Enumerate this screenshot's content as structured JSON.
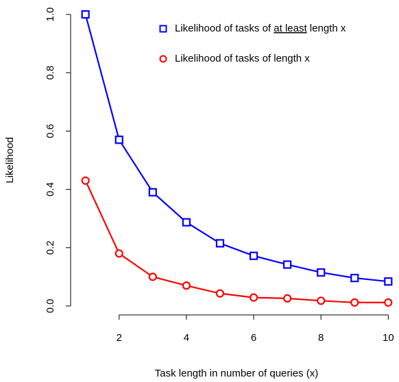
{
  "chart_data": {
    "type": "line",
    "xlabel": "Task length in number of queries (x)",
    "ylabel": "Likelihood",
    "x": [
      1,
      2,
      3,
      4,
      5,
      6,
      7,
      8,
      9,
      10
    ],
    "series": [
      {
        "name": "Likelihood of tasks of at least length x",
        "underline": "at least",
        "color": "#0000ff",
        "marker": "square",
        "values": [
          1.0,
          0.57,
          0.39,
          0.287,
          0.215,
          0.172,
          0.142,
          0.115,
          0.096,
          0.084
        ]
      },
      {
        "name": "Likelihood of tasks of length x",
        "color": "#ff0000",
        "marker": "circle",
        "values": [
          0.43,
          0.18,
          0.1,
          0.07,
          0.043,
          0.029,
          0.026,
          0.018,
          0.012,
          0.012
        ]
      }
    ],
    "xlim": [
      0.64,
      10.36
    ],
    "ylim": [
      -0.04,
      1.04
    ],
    "xticks": [
      2,
      4,
      6,
      8,
      10
    ],
    "yticks": [
      {
        "value": 0,
        "label": "0.0"
      },
      {
        "value": 0.2,
        "label": "0.2"
      },
      {
        "value": 0.4,
        "label": "0.4"
      },
      {
        "value": 0.6,
        "label": "0.6"
      },
      {
        "value": 0.8,
        "label": "0.8"
      },
      {
        "value": 1,
        "label": "1.0"
      }
    ],
    "legend": "top-right"
  }
}
